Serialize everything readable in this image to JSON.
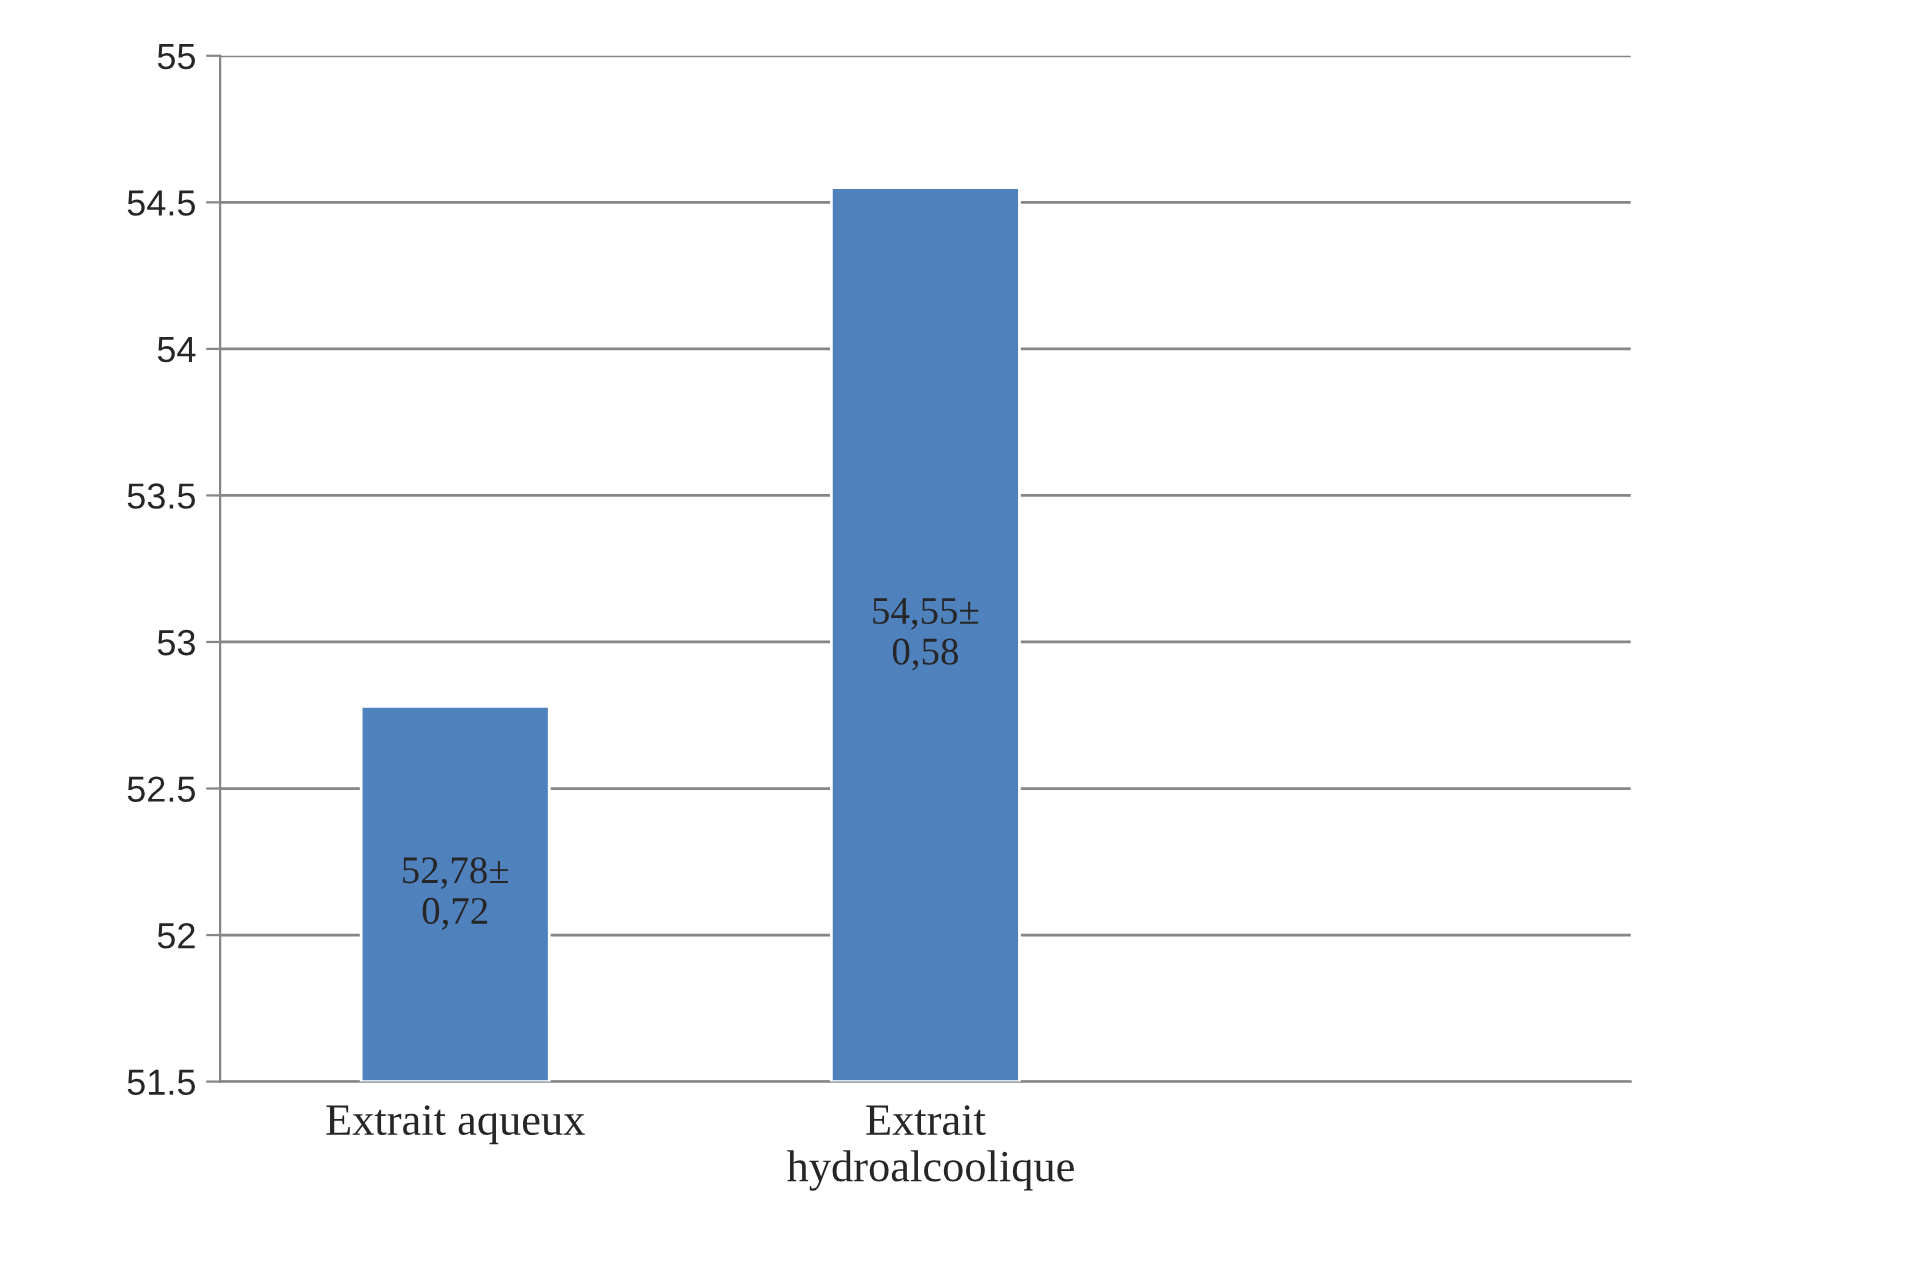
{
  "chart_data": {
    "type": "bar",
    "categories": [
      "Extrait aqueux",
      "Extrait\n hydroalcoolique",
      null
    ],
    "values": [
      52.78,
      54.55,
      null
    ],
    "value_labels": [
      "52,78±\n0,72",
      "54,55±\n0,58",
      null
    ],
    "color": "#4f81bd",
    "ylim": [
      51.5,
      55
    ],
    "yticks": [
      51.5,
      52,
      52.5,
      53,
      53.5,
      54,
      54.5,
      55
    ],
    "grid": "y",
    "legend": false
  }
}
